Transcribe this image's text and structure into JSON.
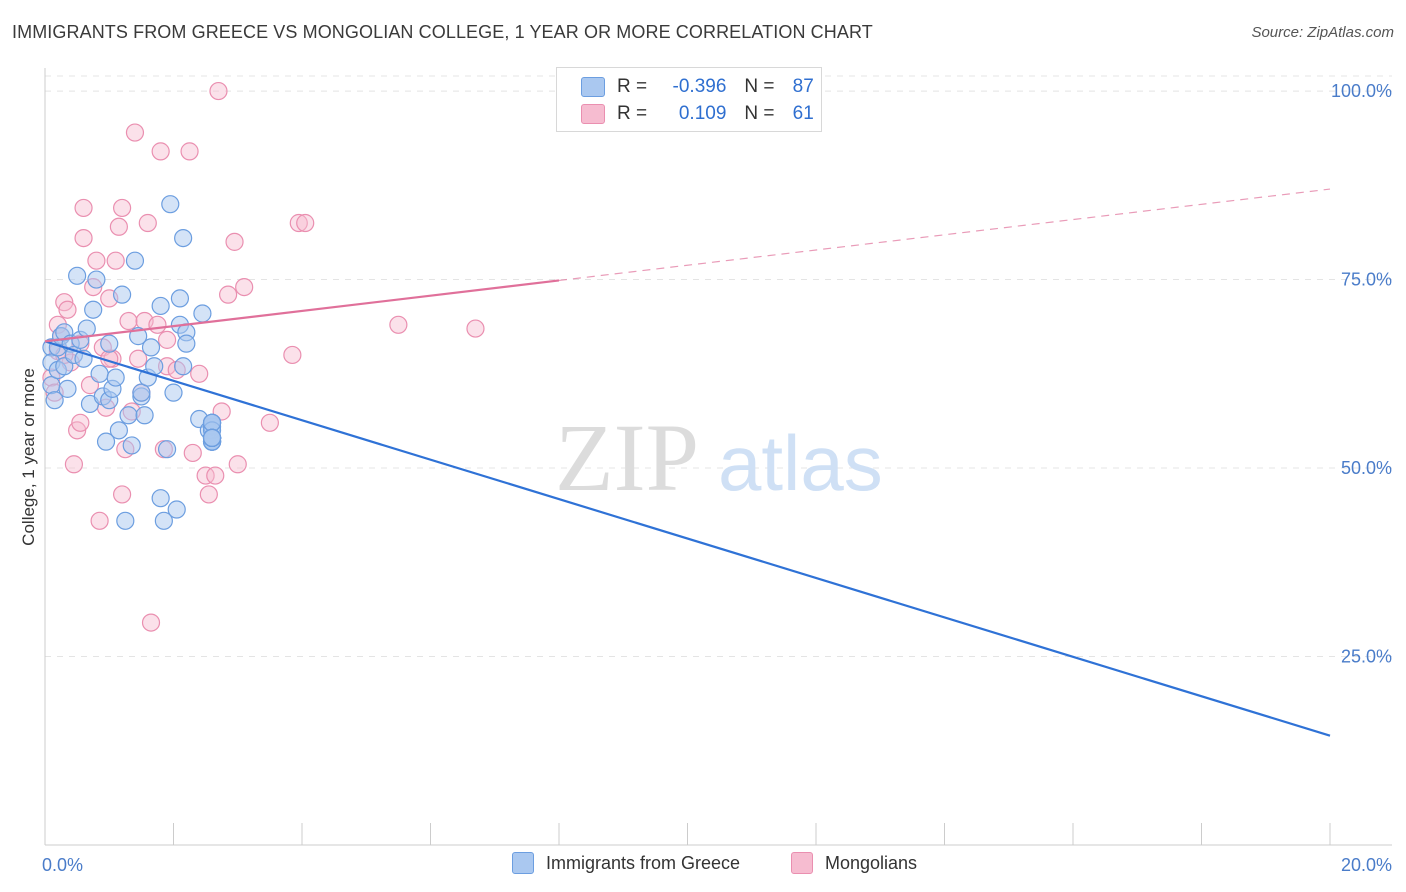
{
  "header": {
    "title": "IMMIGRANTS FROM GREECE VS MONGOLIAN COLLEGE, 1 YEAR OR MORE CORRELATION CHART",
    "source": "Source: ZipAtlas.com"
  },
  "legend": {
    "rows": [
      {
        "r_label": "R =",
        "r_value": "-0.396",
        "n_label": "N =",
        "n_value": "87"
      },
      {
        "r_label": "R =",
        "r_value": "0.109",
        "n_label": "N =",
        "n_value": "61"
      }
    ]
  },
  "bottom_legend": {
    "series1": "Immigrants from Greece",
    "series2": "Mongolians"
  },
  "watermark": {
    "part1": "ZIP",
    "part2": "atlas"
  },
  "colors": {
    "blue_fill": "#aac8f0",
    "blue_stroke": "#6c9ee0",
    "blue_line": "#2f72d6",
    "pink_fill": "#f6bcd0",
    "pink_stroke": "#ea8fb0",
    "pink_line": "#e0709a",
    "tick_text": "#4a7cc9",
    "grid": "#e4e4e4"
  },
  "chart_data": {
    "type": "scatter",
    "title": "IMMIGRANTS FROM GREECE VS MONGOLIAN COLLEGE, 1 YEAR OR MORE CORRELATION CHART",
    "xlabel": "",
    "ylabel": "College, 1 year or more",
    "xlim": [
      0,
      20
    ],
    "ylim": [
      0,
      102
    ],
    "x_tick_labels": [
      "0.0%",
      "20.0%"
    ],
    "y_ticks": [
      25,
      50,
      75,
      100
    ],
    "y_tick_labels": [
      "25.0%",
      "50.0%",
      "75.0%",
      "100.0%"
    ],
    "grid": true,
    "series": [
      {
        "name": "Immigrants from Greece",
        "r": -0.396,
        "n": 87,
        "trend": {
          "x0": 0,
          "y0": 66.8,
          "x1": 20,
          "y1": 14.5
        },
        "points": [
          [
            0.1,
            66
          ],
          [
            0.1,
            64
          ],
          [
            0.1,
            61
          ],
          [
            0.15,
            59
          ],
          [
            0.2,
            63
          ],
          [
            0.2,
            66
          ],
          [
            0.25,
            67.5
          ],
          [
            0.3,
            63.5
          ],
          [
            0.35,
            60.5
          ],
          [
            0.3,
            68
          ],
          [
            0.4,
            66.5
          ],
          [
            0.45,
            65
          ],
          [
            0.5,
            75.5
          ],
          [
            0.55,
            67
          ],
          [
            0.6,
            64.5
          ],
          [
            0.65,
            68.5
          ],
          [
            0.7,
            58.5
          ],
          [
            0.75,
            71
          ],
          [
            0.8,
            75
          ],
          [
            0.85,
            62.5
          ],
          [
            0.9,
            59.5
          ],
          [
            1.0,
            66.5
          ],
          [
            0.95,
            53.5
          ],
          [
            1.0,
            59
          ],
          [
            1.05,
            60.5
          ],
          [
            1.1,
            62
          ],
          [
            1.15,
            55
          ],
          [
            1.2,
            73
          ],
          [
            1.25,
            43
          ],
          [
            1.3,
            57
          ],
          [
            1.35,
            53
          ],
          [
            1.4,
            77.5
          ],
          [
            1.45,
            67.5
          ],
          [
            1.5,
            59.5
          ],
          [
            1.5,
            60
          ],
          [
            1.55,
            57
          ],
          [
            1.6,
            62
          ],
          [
            1.65,
            66
          ],
          [
            1.7,
            63.5
          ],
          [
            1.8,
            71.5
          ],
          [
            1.8,
            46
          ],
          [
            1.85,
            43
          ],
          [
            1.9,
            52.5
          ],
          [
            1.95,
            85
          ],
          [
            2.0,
            60
          ],
          [
            2.05,
            44.5
          ],
          [
            2.1,
            69
          ],
          [
            2.1,
            72.5
          ],
          [
            2.15,
            80.5
          ],
          [
            2.2,
            68
          ],
          [
            2.2,
            66.5
          ],
          [
            2.15,
            63.5
          ],
          [
            2.4,
            56.5
          ],
          [
            2.45,
            70.5
          ],
          [
            2.55,
            55
          ],
          [
            2.6,
            54
          ],
          [
            2.6,
            53.5
          ],
          [
            2.6,
            55.5
          ],
          [
            2.6,
            54
          ],
          [
            2.6,
            56
          ],
          [
            2.6,
            53.5
          ],
          [
            2.6,
            56
          ],
          [
            2.6,
            53.5
          ],
          [
            2.6,
            54
          ],
          [
            2.6,
            54
          ],
          [
            2.6,
            54
          ],
          [
            2.6,
            56
          ],
          [
            2.6,
            53.5
          ],
          [
            2.6,
            54
          ],
          [
            2.6,
            56
          ],
          [
            2.6,
            54
          ],
          [
            2.6,
            54
          ],
          [
            2.6,
            54
          ],
          [
            2.6,
            53.5
          ],
          [
            2.6,
            54
          ],
          [
            2.6,
            54
          ],
          [
            2.6,
            55
          ],
          [
            2.6,
            54
          ],
          [
            2.6,
            54
          ],
          [
            2.6,
            56
          ],
          [
            2.6,
            54
          ],
          [
            2.6,
            54
          ],
          [
            2.6,
            54
          ],
          [
            2.6,
            54
          ],
          [
            2.6,
            54
          ],
          [
            2.6,
            54
          ]
        ]
      },
      {
        "name": "Mongolians",
        "r": 0.109,
        "n": 61,
        "trend": {
          "x0": 0,
          "y0": 66.8,
          "x1": 20,
          "y1": 87.0,
          "solid_until_x": 8.0
        },
        "points": [
          [
            0.1,
            62
          ],
          [
            0.15,
            60
          ],
          [
            0.2,
            69
          ],
          [
            0.2,
            65.5
          ],
          [
            0.25,
            67.5
          ],
          [
            0.3,
            72
          ],
          [
            0.35,
            71
          ],
          [
            0.4,
            64
          ],
          [
            0.45,
            50.5
          ],
          [
            0.5,
            55
          ],
          [
            0.55,
            56
          ],
          [
            0.6,
            80.5
          ],
          [
            0.6,
            84.5
          ],
          [
            0.7,
            61
          ],
          [
            0.75,
            74
          ],
          [
            0.8,
            77.5
          ],
          [
            0.85,
            43
          ],
          [
            0.9,
            66
          ],
          [
            0.95,
            58
          ],
          [
            1.0,
            72.5
          ],
          [
            1.05,
            64.5
          ],
          [
            1.1,
            77.5
          ],
          [
            1.15,
            82
          ],
          [
            1.2,
            84.5
          ],
          [
            1.2,
            46.5
          ],
          [
            1.25,
            52.5
          ],
          [
            1.3,
            69.5
          ],
          [
            1.35,
            57.5
          ],
          [
            1.4,
            94.5
          ],
          [
            1.45,
            64.5
          ],
          [
            1.5,
            60
          ],
          [
            1.55,
            69.5
          ],
          [
            1.6,
            82.5
          ],
          [
            1.65,
            29.5
          ],
          [
            1.75,
            69
          ],
          [
            1.8,
            92
          ],
          [
            1.85,
            52.5
          ],
          [
            1.9,
            67
          ],
          [
            1.9,
            63.5
          ],
          [
            2.05,
            63
          ],
          [
            2.25,
            92
          ],
          [
            2.3,
            52
          ],
          [
            2.4,
            62.5
          ],
          [
            2.5,
            49
          ],
          [
            2.55,
            46.5
          ],
          [
            2.65,
            49
          ],
          [
            2.7,
            100
          ],
          [
            2.75,
            57.5
          ],
          [
            2.85,
            73
          ],
          [
            2.95,
            80
          ],
          [
            3.0,
            50.5
          ],
          [
            3.1,
            74
          ],
          [
            3.5,
            56
          ],
          [
            3.85,
            65
          ],
          [
            3.95,
            82.5
          ],
          [
            4.05,
            82.5
          ],
          [
            5.5,
            69
          ],
          [
            6.7,
            68.5
          ],
          [
            0.3,
            65
          ],
          [
            0.55,
            66.5
          ],
          [
            1.0,
            64.5
          ]
        ]
      }
    ]
  }
}
